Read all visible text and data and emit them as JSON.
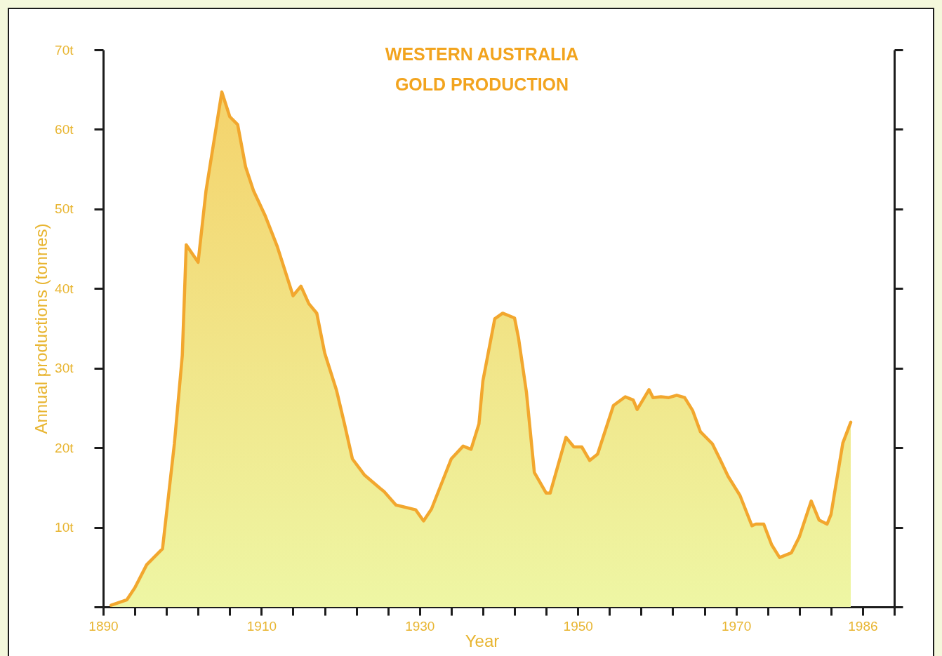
{
  "chart_data": {
    "type": "area",
    "title": "WESTERN AUSTRALIA\nGOLD PRODUCTION",
    "xlabel": "Year",
    "ylabel": "Annual productions (tonnes)",
    "x": [
      1891,
      1893,
      1894,
      1895.5,
      1897.5,
      1899,
      1900,
      1900.5,
      1902,
      1903,
      1905,
      1906,
      1907,
      1908,
      1909,
      1910.5,
      1912,
      1914,
      1915,
      1916,
      1917,
      1918,
      1919.5,
      1920.5,
      1921.5,
      1923,
      1925,
      1925.5,
      1927,
      1929.5,
      1930.5,
      1931.5,
      1934,
      1935.5,
      1936.5,
      1937.5,
      1938,
      1939.5,
      1940.5,
      1942,
      1942.5,
      1943.5,
      1944.5,
      1946,
      1946.5,
      1948.5,
      1949.5,
      1950.5,
      1951.5,
      1952.5,
      1954.5,
      1956,
      1957,
      1957.5,
      1959,
      1959.5,
      1960.5,
      1961.5,
      1962.5,
      1963.5,
      1964.5,
      1965.5,
      1967,
      1968,
      1969,
      1970.5,
      1972,
      1972.5,
      1973.5,
      1974.5,
      1975.5,
      1977,
      1978,
      1979.5,
      1980.5,
      1981.5,
      1982,
      1983.5,
      1984.5
    ],
    "values": [
      0.2,
      0.9,
      2.4,
      5.3,
      7.3,
      20.5,
      31.6,
      45.5,
      43.3,
      52.3,
      64.7,
      61.6,
      60.6,
      55.3,
      52.3,
      49.1,
      45.3,
      39.1,
      40.3,
      38.1,
      36.9,
      31.9,
      27.2,
      23.0,
      18.6,
      16.6,
      14.9,
      14.5,
      12.8,
      12.2,
      10.8,
      12.3,
      18.6,
      20.2,
      19.8,
      23.0,
      28.4,
      36.2,
      36.9,
      36.3,
      33.8,
      27,
      16.9,
      14.3,
      14.3,
      21.3,
      20.1,
      20.1,
      18.4,
      19.2,
      25.3,
      26.4,
      26.0,
      24.8,
      27.3,
      26.3,
      26.4,
      26.3,
      26.6,
      26.3,
      24.7,
      22.0,
      20.5,
      18.5,
      16.4,
      14.0,
      10.2,
      10.4,
      10.4,
      7.8,
      6.2,
      6.8,
      8.8,
      13.3,
      10.9,
      10.4,
      11.6,
      20.6,
      23.2
    ],
    "color": "#f2a72e",
    "xlim": [
      1890,
      1990
    ],
    "ylim": [
      0,
      70
    ],
    "xticks": [
      1890,
      {
        "value": 1894,
        "label": null
      },
      {
        "value": 1898,
        "label": null
      },
      {
        "value": 1902,
        "label": null
      },
      {
        "value": 1906,
        "label": null
      },
      1910,
      {
        "value": 1914,
        "label": null
      },
      {
        "value": 1918,
        "label": null
      },
      {
        "value": 1922,
        "label": null
      },
      {
        "value": 1926,
        "label": null
      },
      1930,
      {
        "value": 1934,
        "label": null
      },
      {
        "value": 1938,
        "label": null
      },
      {
        "value": 1942,
        "label": null
      },
      {
        "value": 1946,
        "label": null
      },
      1950,
      {
        "value": 1954,
        "label": null
      },
      {
        "value": 1958,
        "label": null
      },
      {
        "value": 1962,
        "label": null
      },
      {
        "value": 1966,
        "label": null
      },
      1970,
      {
        "value": 1974,
        "label": null
      },
      {
        "value": 1978,
        "label": null
      },
      {
        "value": 1982,
        "label": null
      },
      1986,
      {
        "value": 1990,
        "label": null
      }
    ],
    "yticks": [
      {
        "value": 0,
        "label": null
      },
      {
        "value": 10,
        "label": "10t"
      },
      {
        "value": 20,
        "label": "20t"
      },
      {
        "value": 30,
        "label": "30t"
      },
      {
        "value": 40,
        "label": "40t"
      },
      {
        "value": 50,
        "label": "50t"
      },
      {
        "value": 60,
        "label": "60t"
      },
      {
        "value": 70,
        "label": "70t"
      }
    ]
  }
}
